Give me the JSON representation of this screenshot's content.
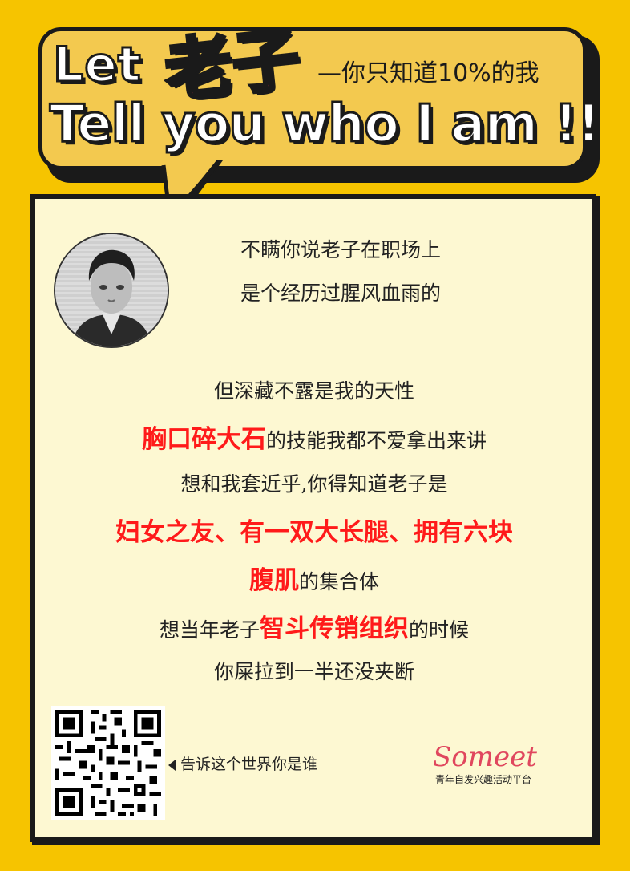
{
  "header": {
    "let": "Let",
    "laozi": "老子",
    "subtitle": "—你只知道10%的我",
    "main": "Tell you who I am !!"
  },
  "body": {
    "line1": "不瞒你说老子在职场上",
    "line2": "是个经历过腥风血雨的",
    "line3": "但深藏不露是我的天性",
    "line4_hl": "胸口碎大石",
    "line4_rest": "的技能我都不爱拿出来讲",
    "line5": "想和我套近乎,你得知道老子是",
    "line6_hl": "妇女之友、有一双大长腿、拥有六块",
    "line7_hl": "腹肌",
    "line7_rest": "的集合体",
    "line8_pre": "想当年老子",
    "line8_hl": "智斗传销组织",
    "line8_post": "的时候",
    "line9": "你屎拉到一半还没夹断"
  },
  "footer": {
    "share_text": "告诉这个世界你是谁",
    "brand_name": "Someet",
    "brand_tagline": "—青年自发兴趣活动平台—"
  },
  "colors": {
    "background": "#f6c400",
    "bubble": "#f3c94f",
    "highlight": "#ff1a1a",
    "title_red": "#e8314a",
    "brand": "#e0475e",
    "card": "#fdf8d2"
  }
}
